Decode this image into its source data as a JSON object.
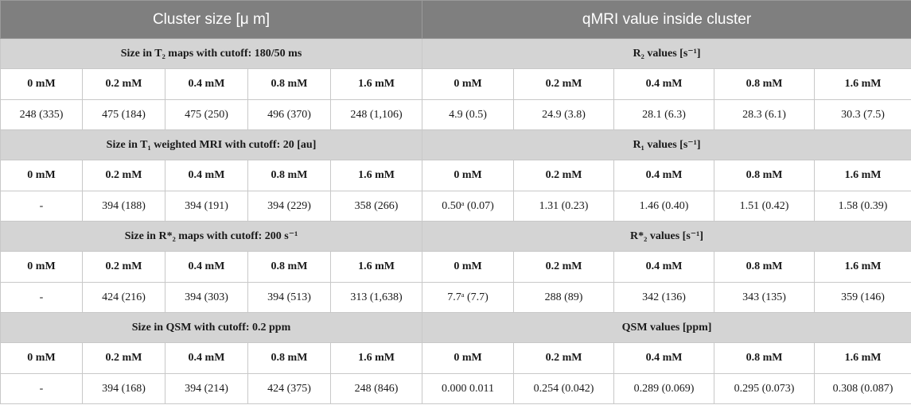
{
  "header": {
    "left": "Cluster size [μ m]",
    "right": "qMRI value inside cluster"
  },
  "concentrations": [
    "0 mM",
    "0.2 mM",
    "0.4 mM",
    "0.8 mM",
    "1.6 mM"
  ],
  "sections": [
    {
      "left_title": "Size in T₂ maps with cutoff: 180/50 ms",
      "right_title": "R₂ values [s⁻¹]",
      "size_values": [
        "248 (335)",
        "475 (184)",
        "475 (250)",
        "496 (370)",
        "248 (1,106)"
      ],
      "qmri_values": [
        "4.9 (0.5)",
        "24.9 (3.8)",
        "28.1 (6.3)",
        "28.3 (6.1)",
        "30.3 (7.5)"
      ]
    },
    {
      "left_title": "Size in T₁ weighted MRI with cutoff: 20 [au]",
      "right_title": "R₁ values [s⁻¹]",
      "size_values": [
        "-",
        "394 (188)",
        "394 (191)",
        "394 (229)",
        "358 (266)"
      ],
      "qmri_values": [
        "0.50ᵃ (0.07)",
        "1.31 (0.23)",
        "1.46 (0.40)",
        "1.51 (0.42)",
        "1.58 (0.39)"
      ]
    },
    {
      "left_title": "Size in R*₂ maps with cutoff: 200 s⁻¹",
      "right_title": "R*₂ values [s⁻¹]",
      "size_values": [
        "-",
        "424 (216)",
        "394 (303)",
        "394 (513)",
        "313 (1,638)"
      ],
      "qmri_values": [
        "7.7ᵃ (7.7)",
        "288 (89)",
        "342 (136)",
        "343 (135)",
        "359 (146)"
      ]
    },
    {
      "left_title": "Size in QSM with cutoff: 0.2 ppm",
      "right_title": "QSM values [ppm]",
      "size_values": [
        "-",
        "394 (168)",
        "394 (214)",
        "424 (375)",
        "248 (846)"
      ],
      "qmri_values": [
        "0.000 0.011",
        "0.254 (0.042)",
        "0.289 (0.069)",
        "0.295 (0.073)",
        "0.308 (0.087)"
      ]
    }
  ]
}
